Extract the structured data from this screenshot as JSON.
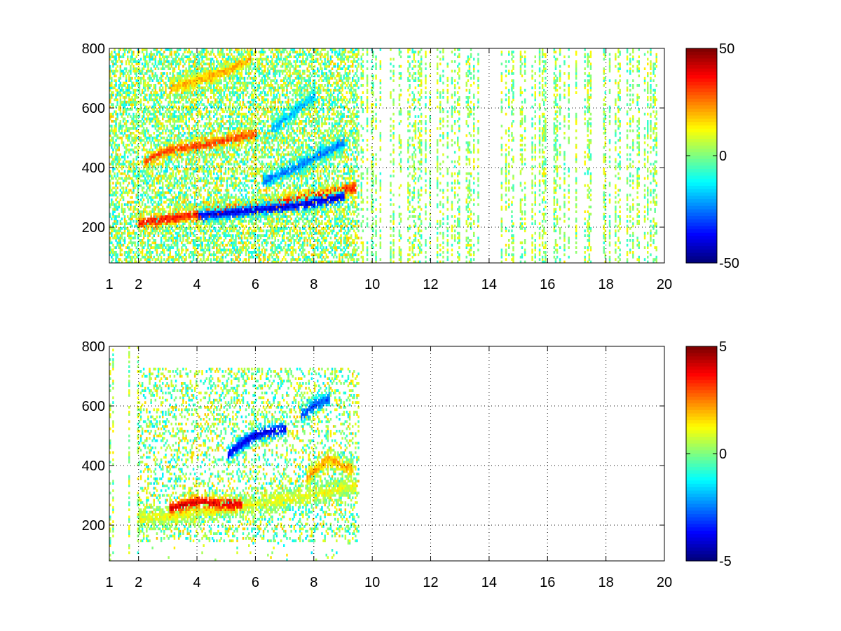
{
  "chart_data": [
    {
      "type": "heatmap",
      "title": "",
      "xlabel": "",
      "ylabel": "",
      "xlim": [
        1,
        20
      ],
      "ylim": [
        80,
        800
      ],
      "x_ticks": [
        1,
        2,
        4,
        6,
        8,
        10,
        12,
        14,
        16,
        18,
        20
      ],
      "x_tick_labels": [
        "1",
        "2",
        "4",
        "6",
        "8",
        "10",
        "12",
        "14",
        "16",
        "18",
        "20"
      ],
      "y_ticks": [
        200,
        400,
        600,
        800
      ],
      "y_tick_labels": [
        "200",
        "400",
        "600",
        "800"
      ],
      "grid": true,
      "grid_style": "dotted",
      "colormap": "jet",
      "clim": [
        -50,
        50
      ],
      "colorbar_ticks": [
        50,
        0,
        -50
      ],
      "colorbar_tick_labels": [
        "50",
        "0",
        "-50"
      ],
      "dense_data_x_range": [
        1,
        9.5
      ],
      "sparse_data_x_range": [
        9.5,
        20
      ],
      "features": [
        {
          "kind": "band",
          "x": [
            2,
            3,
            4,
            5,
            6,
            7,
            8,
            9.4
          ],
          "y": [
            210,
            225,
            240,
            255,
            265,
            280,
            300,
            330
          ],
          "value": 35
        },
        {
          "kind": "band",
          "x": [
            2.2,
            3,
            4,
            5,
            6
          ],
          "y": [
            420,
            455,
            470,
            490,
            510
          ],
          "value": 30
        },
        {
          "kind": "band",
          "x": [
            3,
            4,
            5,
            5.8
          ],
          "y": [
            660,
            690,
            720,
            760
          ],
          "value": 20
        },
        {
          "kind": "band",
          "x": [
            4,
            5,
            6,
            7,
            8,
            9
          ],
          "y": [
            235,
            245,
            255,
            265,
            280,
            300
          ],
          "value": -40
        },
        {
          "kind": "band",
          "x": [
            6.2,
            7,
            8,
            9
          ],
          "y": [
            350,
            380,
            430,
            480
          ],
          "value": -25
        },
        {
          "kind": "band",
          "x": [
            6.5,
            7,
            8
          ],
          "y": [
            520,
            560,
            640
          ],
          "value": -20
        }
      ]
    },
    {
      "type": "heatmap",
      "title": "",
      "xlabel": "",
      "ylabel": "",
      "xlim": [
        1,
        20
      ],
      "ylim": [
        80,
        800
      ],
      "x_ticks": [
        1,
        2,
        4,
        6,
        8,
        10,
        12,
        14,
        16,
        18,
        20
      ],
      "x_tick_labels": [
        "1",
        "2",
        "4",
        "6",
        "8",
        "10",
        "12",
        "14",
        "16",
        "18",
        "20"
      ],
      "y_ticks": [
        200,
        400,
        600,
        800
      ],
      "y_tick_labels": [
        "200",
        "400",
        "600",
        "800"
      ],
      "grid": true,
      "grid_style": "dotted",
      "colormap": "jet",
      "clim": [
        -5,
        5
      ],
      "colorbar_ticks": [
        5,
        0,
        -5
      ],
      "colorbar_tick_labels": [
        "5",
        "0",
        "-5"
      ],
      "dense_data_x_range": [
        2,
        9.5
      ],
      "sparse_data_x_range": [
        1,
        2
      ],
      "features": [
        {
          "kind": "band",
          "x": [
            2,
            3,
            4,
            5,
            6,
            7,
            8,
            9.4
          ],
          "y": [
            215,
            225,
            240,
            255,
            265,
            280,
            300,
            330
          ],
          "value": 1
        },
        {
          "kind": "band",
          "x": [
            3,
            3.5,
            4,
            4.5,
            5.5
          ],
          "y": [
            250,
            265,
            275,
            270,
            265
          ],
          "value": 4
        },
        {
          "kind": "band",
          "x": [
            5,
            5.5,
            6,
            7
          ],
          "y": [
            430,
            470,
            500,
            520
          ],
          "value": -4
        },
        {
          "kind": "band",
          "x": [
            7.5,
            8,
            8.5
          ],
          "y": [
            560,
            600,
            620
          ],
          "value": -3
        },
        {
          "kind": "band",
          "x": [
            7.7,
            8,
            8.5,
            9.3
          ],
          "y": [
            350,
            380,
            420,
            380
          ],
          "value": 2
        }
      ]
    }
  ]
}
